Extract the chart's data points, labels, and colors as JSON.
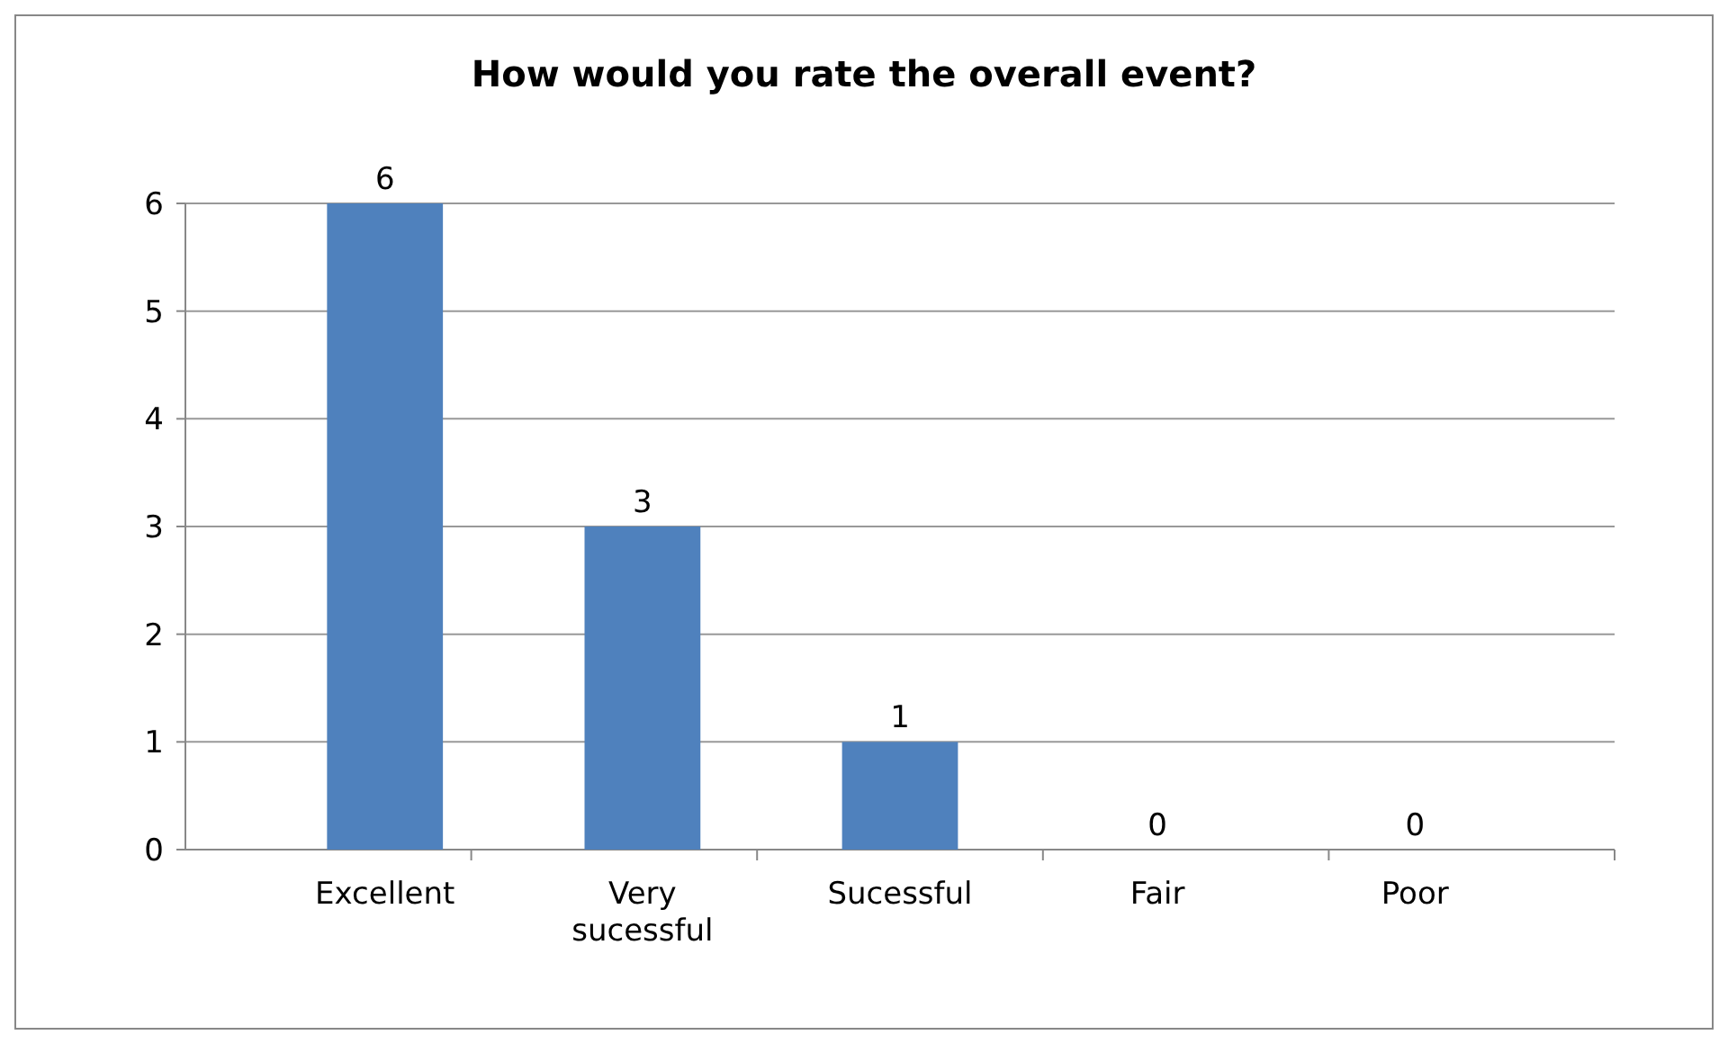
{
  "chart_data": {
    "type": "bar",
    "title": "How would you rate the overall event?",
    "categories": [
      "Excellent",
      "Very sucessful",
      "Sucessful",
      "Fair",
      "Poor"
    ],
    "values": [
      6,
      3,
      1,
      0,
      0
    ],
    "color": "#4f81bd",
    "ylim": [
      0,
      6
    ],
    "yticks": [
      0,
      1,
      2,
      3,
      4,
      5,
      6
    ],
    "grid": "y",
    "data_labels": true
  }
}
